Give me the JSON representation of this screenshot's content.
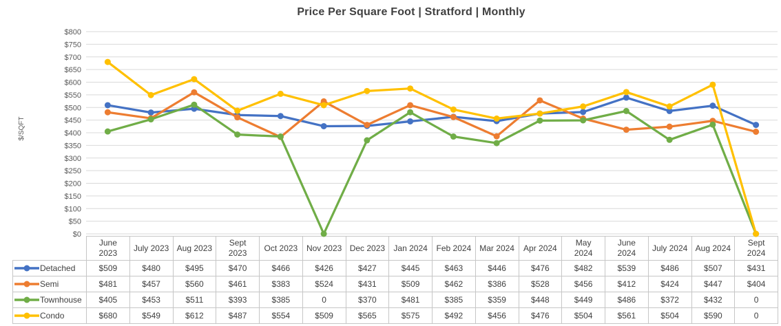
{
  "chart_data": {
    "type": "line",
    "title": "Price Per Square Foot | Stratford | Monthly",
    "xlabel": "",
    "ylabel": "$/SQFT",
    "ylim": [
      0,
      800
    ],
    "ytick_step": 50,
    "ytick_labels": [
      "$800",
      "$750",
      "$700",
      "$650",
      "$600",
      "$550",
      "$500",
      "$450",
      "$400",
      "$350",
      "$300",
      "$250",
      "$200",
      "$150",
      "$100",
      "$50",
      "$0"
    ],
    "grid": true,
    "grid_color": "#d9d9d9",
    "axis_text_color": "#595959",
    "legend_position": "table-left",
    "categories": [
      "June 2023",
      "July 2023",
      "Aug 2023",
      "Sept 2023",
      "Oct 2023",
      "Nov 2023",
      "Dec 2023",
      "Jan 2024",
      "Feb 2024",
      "Mar 2024",
      "Apr 2024",
      "May 2024",
      "June 2024",
      "July 2024",
      "Aug 2024",
      "Sept 2024"
    ],
    "series": [
      {
        "name": "Detached",
        "color": "#4472C4",
        "values": [
          509,
          480,
          495,
          470,
          466,
          426,
          427,
          445,
          463,
          446,
          476,
          482,
          539,
          486,
          507,
          431
        ]
      },
      {
        "name": "Semi",
        "color": "#ED7D31",
        "values": [
          481,
          457,
          560,
          461,
          383,
          524,
          431,
          509,
          462,
          386,
          528,
          456,
          412,
          424,
          447,
          404
        ]
      },
      {
        "name": "Townhouse",
        "color": "#70AD47",
        "values": [
          405,
          453,
          511,
          393,
          385,
          0,
          370,
          481,
          385,
          359,
          448,
          449,
          486,
          372,
          432,
          0
        ]
      },
      {
        "name": "Condo",
        "color": "#FFC000",
        "values": [
          680,
          549,
          612,
          487,
          554,
          509,
          565,
          575,
          492,
          456,
          476,
          504,
          561,
          504,
          590,
          0
        ]
      }
    ]
  },
  "table": {
    "column_headers": [
      "June\n2023",
      "July 2023",
      "Aug 2023",
      "Sept\n2023",
      "Oct 2023",
      "Nov 2023",
      "Dec 2023",
      "Jan 2024",
      "Feb 2024",
      "Mar 2024",
      "Apr 2024",
      "May\n2024",
      "June\n2024",
      "July 2024",
      "Aug 2024",
      "Sept\n2024"
    ],
    "currency_prefix": "$",
    "zero_display": "0",
    "border_color": "#c6c6c6",
    "text_color": "#3f3f3f"
  }
}
